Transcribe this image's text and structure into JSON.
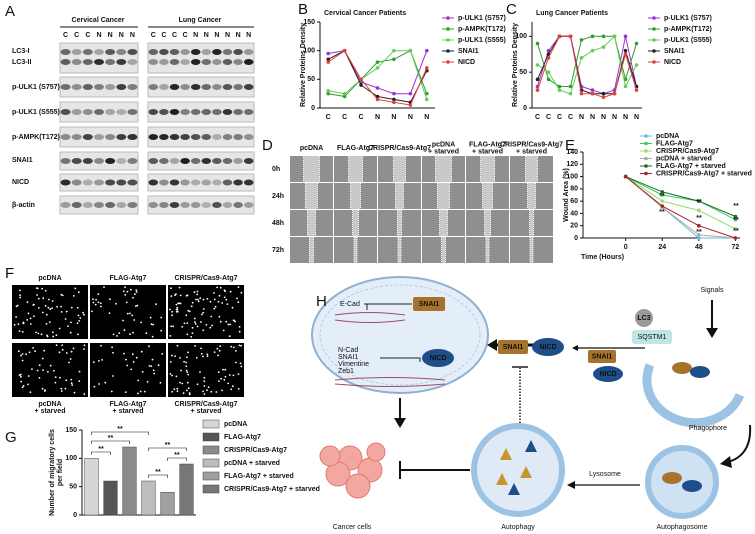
{
  "figure": {
    "panel_labels": [
      "A",
      "D",
      "F",
      "H"
    ],
    "blot": {
      "groups": [
        "Cervical Cancer",
        "Lung Cancer"
      ],
      "cervical_lanes": [
        "C",
        "C",
        "C",
        "N",
        "N",
        "N",
        "N"
      ],
      "lung_lanes": [
        "C",
        "C",
        "C",
        "C",
        "N",
        "N",
        "N",
        "N",
        "N",
        "N"
      ],
      "rows": [
        "LC3-I",
        "LC3-II",
        "p-ULK1 (S757)",
        "p-ULK1 (S555)",
        "p-AMPK(T172)",
        "SNAI1",
        "NICD",
        "β-actin"
      ]
    },
    "wound": {
      "columns": [
        [
          "pcDNA"
        ],
        [
          "FLAG-Atg7"
        ],
        [
          "CRISPR/Cas9-Atg7"
        ],
        [
          "pcDNA",
          "+ starved"
        ],
        [
          "FLAG-Atg7",
          "+ starved"
        ],
        [
          "CRISPR/Cas9-Atg7",
          "+ starved"
        ]
      ],
      "rows": [
        "0h",
        "24h",
        "48h",
        "72h"
      ]
    },
    "migration": {
      "top": [
        [
          "pcDNA"
        ],
        [
          "FLAG-Atg7"
        ],
        [
          "CRISPR/Cas9-Atg7"
        ]
      ],
      "bottom": [
        [
          "pcDNA",
          "+ starved"
        ],
        [
          "FLAG-Atg7",
          "+ starved"
        ],
        [
          "CRISPR/Cas9-Atg7",
          "+ starved"
        ]
      ]
    },
    "diagram": {
      "genes": [
        "E-Cad",
        "N-Cad",
        "SNAI1",
        "Vimentine",
        "Zeb1"
      ],
      "snai1": "SNAI1",
      "nicd": "NICD",
      "lc3": "LC3",
      "sqstm1": "SQSTM1",
      "signals": "Signals",
      "stages": [
        "Phagophore",
        "Autophagosome",
        "Lysosome",
        "Autophagy",
        "Cancer cells"
      ]
    }
  },
  "chart_data": [
    {
      "type": "line",
      "panel": "B",
      "title": "Cervical Cancer Patients",
      "ylabel": "Relative Proteins Density",
      "categories": [
        "C",
        "C",
        "C",
        "N",
        "N",
        "N",
        "N"
      ],
      "ylim": [
        0,
        150
      ],
      "yticks": [
        0,
        50,
        100,
        150
      ],
      "series": [
        {
          "name": "p-ULK1 (S757)",
          "color": "#9933cc",
          "values": [
            95,
            100,
            45,
            35,
            25,
            25,
            100
          ]
        },
        {
          "name": "p-AMPK(T172)",
          "color": "#2e9e2e",
          "values": [
            25,
            20,
            50,
            80,
            85,
            100,
            25
          ]
        },
        {
          "name": "p-ULK1 (S555)",
          "color": "#66cc55",
          "values": [
            30,
            25,
            50,
            70,
            100,
            100,
            15
          ]
        },
        {
          "name": "SNAI1",
          "color": "#222222",
          "values": [
            85,
            100,
            40,
            20,
            15,
            10,
            65
          ]
        },
        {
          "name": "NICD",
          "color": "#e04040",
          "values": [
            80,
            100,
            50,
            15,
            10,
            5,
            70
          ]
        }
      ]
    },
    {
      "type": "line",
      "panel": "C",
      "title": "Lung Cancer Patients",
      "ylabel": "Relative Proteins Density",
      "categories": [
        "C",
        "C",
        "C",
        "C",
        "N",
        "N",
        "N",
        "N",
        "N",
        "N"
      ],
      "ylim": [
        0,
        120
      ],
      "yticks": [
        0,
        50,
        100
      ],
      "series": [
        {
          "name": "p-ULK1 (S757)",
          "color": "#9933cc",
          "values": [
            30,
            80,
            100,
            100,
            30,
            25,
            20,
            25,
            100,
            30
          ]
        },
        {
          "name": "p-AMPK(T172)",
          "color": "#2e9e2e",
          "values": [
            90,
            40,
            30,
            30,
            95,
            100,
            100,
            100,
            40,
            90
          ]
        },
        {
          "name": "p-ULK1 (S555)",
          "color": "#66cc55",
          "values": [
            60,
            50,
            25,
            20,
            70,
            80,
            85,
            100,
            30,
            60
          ]
        },
        {
          "name": "SNAI1",
          "color": "#222222",
          "values": [
            40,
            75,
            100,
            100,
            25,
            20,
            20,
            20,
            80,
            30
          ]
        },
        {
          "name": "NICD",
          "color": "#e04040",
          "values": [
            25,
            70,
            100,
            100,
            20,
            20,
            15,
            20,
            75,
            25
          ]
        }
      ]
    },
    {
      "type": "line",
      "panel": "E",
      "xlabel": "Time (Hours)",
      "ylabel": "Wound Area (%)",
      "significance_label": "**",
      "x": [
        0,
        24,
        48,
        72
      ],
      "xlim": [
        -28,
        75
      ],
      "xticks": [
        0,
        24,
        48,
        72
      ],
      "ylim": [
        0,
        140
      ],
      "yticks": [
        0,
        20,
        40,
        60,
        80,
        100,
        120,
        140
      ],
      "series": [
        {
          "name": "pcDNA",
          "color": "#66bbdd",
          "values": [
            100,
            50,
            0,
            0
          ]
        },
        {
          "name": "FLAG-Atg7",
          "color": "#33cc66",
          "values": [
            100,
            70,
            60,
            30
          ]
        },
        {
          "name": "CRISPR/Cas9-Atg7",
          "color": "#99dd66",
          "values": [
            100,
            60,
            45,
            15
          ]
        },
        {
          "name": "pcDNA + starved",
          "color": "#aaaaaa",
          "values": [
            100,
            50,
            5,
            0
          ]
        },
        {
          "name": "FLAG-Atg7 + starved",
          "color": "#226622",
          "values": [
            100,
            75,
            60,
            35
          ]
        },
        {
          "name": "CRISPR/Cas9-Atg7 + starved",
          "color": "#aa2222",
          "values": [
            100,
            52,
            20,
            0
          ]
        }
      ]
    },
    {
      "type": "bar",
      "panel": "G",
      "ylabel": [
        "Number of migratory cells",
        "per field"
      ],
      "significance_label": "**",
      "categories": [
        "pcDNA",
        "FLAG-Atg7",
        "CRISPR/Cas9-Atg7",
        "pcDNA + starved",
        "FLAG-Atg7 + starved",
        "CRISPR/Cas9-Atg7 + starved"
      ],
      "values": [
        100,
        60,
        120,
        60,
        40,
        90
      ],
      "colors": [
        "#d6d6d6",
        "#555555",
        "#8a8a8a",
        "#bdbdbd",
        "#a0a0a0",
        "#777777"
      ],
      "ylim": [
        0,
        150
      ],
      "yticks": [
        0,
        50,
        100,
        150
      ]
    }
  ]
}
